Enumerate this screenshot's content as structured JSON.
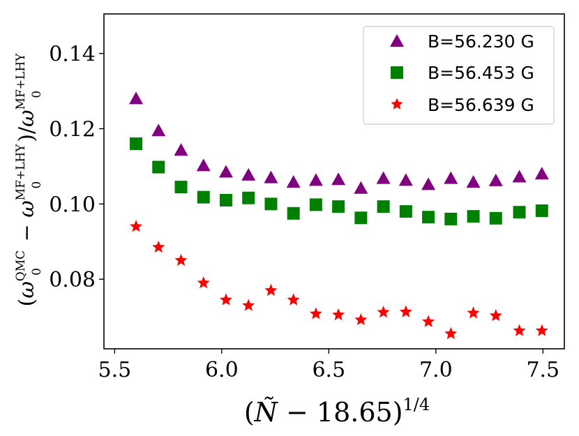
{
  "chart_data": {
    "type": "scatter",
    "title": "",
    "xlabel": "(Ñ − 18.65)^{1/4}",
    "xlabel_parts": {
      "open": "(",
      "n": "Ñ",
      "rest": " − 18.65)",
      "exp": "1/4"
    },
    "ylabel": "(ω0^QMC − ω0^MF+LHY)/ω0^MF+LHY",
    "ylabel_parts": {
      "open": "(",
      "omega": "ω",
      "sub": "0",
      "sup_qmc": "QMC",
      "minus": " − ",
      "sup_mf": "MF+LHY",
      "close": ")/"
    },
    "xlim": [
      5.45,
      7.6
    ],
    "ylim": [
      0.0615,
      0.1505
    ],
    "xticks": [
      5.5,
      6.0,
      6.5,
      7.0,
      7.5
    ],
    "xtick_labels": [
      "5.5",
      "6.0",
      "6.5",
      "7.0",
      "7.5"
    ],
    "yticks": [
      0.08,
      0.1,
      0.12,
      0.14
    ],
    "ytick_labels": [
      "0.08",
      "0.10",
      "0.12",
      "0.14"
    ],
    "grid": false,
    "legend_position": "top-right",
    "x": [
      5.6,
      5.705,
      5.81,
      5.915,
      6.02,
      6.125,
      6.23,
      6.335,
      6.44,
      6.545,
      6.65,
      6.755,
      6.86,
      6.965,
      7.07,
      7.175,
      7.28,
      7.39,
      7.495
    ],
    "series": [
      {
        "name": "B=56.230 G",
        "marker": "triangle",
        "color": "#800080",
        "values": [
          0.128,
          0.1195,
          0.1143,
          0.1102,
          0.1085,
          0.1077,
          0.107,
          0.1058,
          0.1063,
          0.1065,
          0.1042,
          0.1068,
          0.1063,
          0.1052,
          0.1068,
          0.1058,
          0.1062,
          0.1072,
          0.108
        ]
      },
      {
        "name": "B=56.453 G",
        "marker": "square",
        "color": "#008000",
        "values": [
          0.116,
          0.1098,
          0.1045,
          0.1018,
          0.101,
          0.1016,
          0.1,
          0.0975,
          0.0998,
          0.0993,
          0.0963,
          0.0993,
          0.098,
          0.0965,
          0.096,
          0.0967,
          0.0962,
          0.0978,
          0.0982
        ]
      },
      {
        "name": "B=56.639 G",
        "marker": "star",
        "color": "#ff0000",
        "values": [
          0.094,
          0.0885,
          0.085,
          0.079,
          0.0745,
          0.073,
          0.077,
          0.0745,
          0.0708,
          0.0705,
          0.0692,
          0.0712,
          0.0713,
          0.0687,
          0.0655,
          0.071,
          0.0703,
          0.0663,
          0.0663
        ]
      }
    ]
  }
}
